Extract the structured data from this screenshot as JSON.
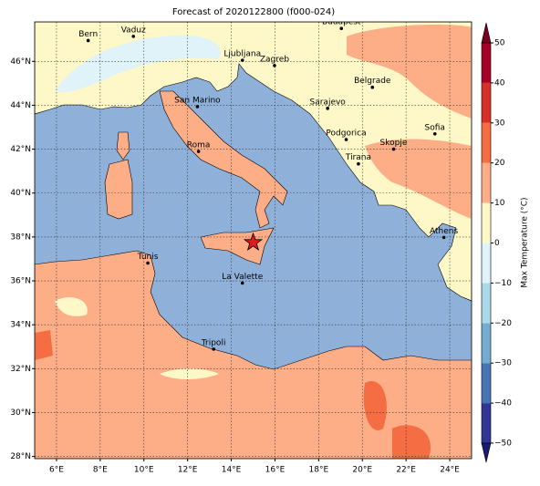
{
  "map": {
    "title": "Forecast of 2020122800 (f000-024)",
    "extent": [
      5,
      25,
      27.9,
      47.8
    ],
    "lon_ticks": [
      {
        "value": 6,
        "label": "6°E"
      },
      {
        "value": 8,
        "label": "8°E"
      },
      {
        "value": 10,
        "label": "10°E"
      },
      {
        "value": 12,
        "label": "12°E"
      },
      {
        "value": 14,
        "label": "14°E"
      },
      {
        "value": 16,
        "label": "16°E"
      },
      {
        "value": 18,
        "label": "18°E"
      },
      {
        "value": 20,
        "label": "20°E"
      },
      {
        "value": 22,
        "label": "22°E"
      },
      {
        "value": 24,
        "label": "24°E"
      }
    ],
    "lat_ticks": [
      {
        "value": 28,
        "label": "28°N"
      },
      {
        "value": 30,
        "label": "30°N"
      },
      {
        "value": 32,
        "label": "32°N"
      },
      {
        "value": 34,
        "label": "34°N"
      },
      {
        "value": 36,
        "label": "36°N"
      },
      {
        "value": 38,
        "label": "38°N"
      },
      {
        "value": 40,
        "label": "40°N"
      },
      {
        "value": 42,
        "label": "42°N"
      },
      {
        "value": 44,
        "label": "44°N"
      },
      {
        "value": 46,
        "label": "46°N"
      }
    ],
    "cities": [
      {
        "name": "Bern",
        "lon": 7.45,
        "lat": 46.95
      },
      {
        "name": "Vaduz",
        "lon": 9.52,
        "lat": 47.14
      },
      {
        "name": "Budapest",
        "lon": 19.04,
        "lat": 47.5
      },
      {
        "name": "Ljubljana",
        "lon": 14.51,
        "lat": 46.05
      },
      {
        "name": "Zagreb",
        "lon": 15.98,
        "lat": 45.81
      },
      {
        "name": "Belgrade",
        "lon": 20.46,
        "lat": 44.82
      },
      {
        "name": "San Marino",
        "lon": 12.45,
        "lat": 43.94
      },
      {
        "name": "Sarajevo",
        "lon": 18.41,
        "lat": 43.86
      },
      {
        "name": "Sofia",
        "lon": 23.32,
        "lat": 42.7
      },
      {
        "name": "Roma",
        "lon": 12.5,
        "lat": 41.9
      },
      {
        "name": "Podgorica",
        "lon": 19.26,
        "lat": 42.44
      },
      {
        "name": "Skopje",
        "lon": 21.43,
        "lat": 42.0
      },
      {
        "name": "Tirana",
        "lon": 19.82,
        "lat": 41.33
      },
      {
        "name": "Athens",
        "lon": 23.73,
        "lat": 37.98
      },
      {
        "name": "Tunis",
        "lon": 10.18,
        "lat": 36.81
      },
      {
        "name": "La Valette",
        "lon": 14.51,
        "lat": 35.9
      },
      {
        "name": "Tripoli",
        "lon": 13.19,
        "lat": 32.89
      }
    ],
    "marker": {
      "lon": 15.0,
      "lat": 37.75,
      "color": "#e31a1c"
    },
    "colorbar": {
      "label": "Max Temperature (°C)",
      "lim": [
        -50,
        50
      ],
      "ticks": [
        {
          "value": -50,
          "label": "−50"
        },
        {
          "value": -40,
          "label": "−40"
        },
        {
          "value": -30,
          "label": "−30"
        },
        {
          "value": -20,
          "label": "−20"
        },
        {
          "value": -10,
          "label": "−10"
        },
        0,
        10,
        20,
        30,
        40,
        50
      ],
      "colors": [
        "#313695",
        "#4575b4",
        "#74add1",
        "#abd9e9",
        "#e0f3f8",
        "#fef8c8",
        "#fdae87",
        "#f46d43",
        "#d73027",
        "#a50026"
      ],
      "under_color": "#1a1a70",
      "over_color": "#7a0020"
    }
  }
}
